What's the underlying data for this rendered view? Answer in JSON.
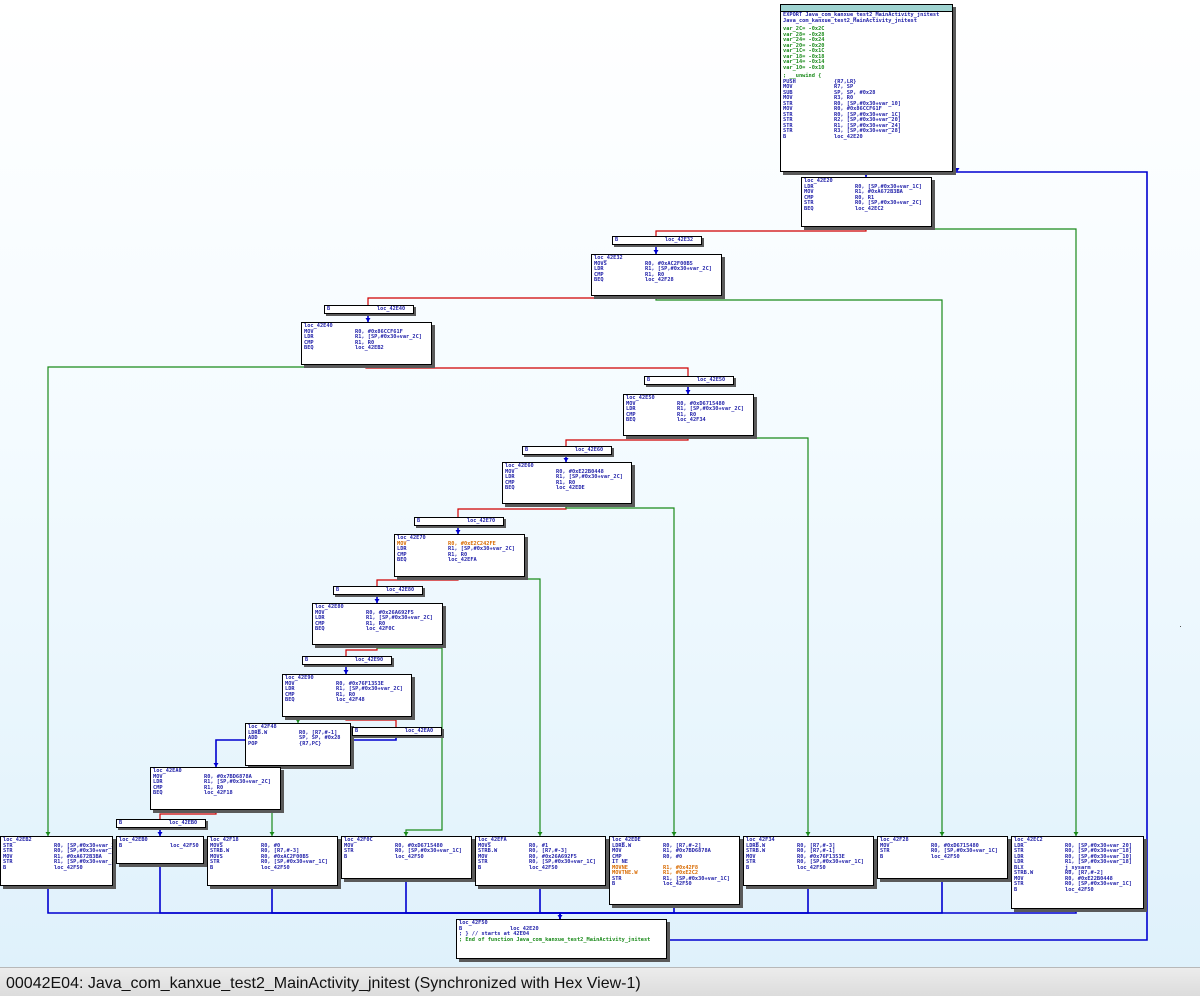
{
  "status_bar": {
    "text": "00042E04: Java_com_kanxue_test2_MainActivity_jnitest  (Synchronized with Hex View-1)"
  },
  "colors": {
    "edge_true": "#1a8a1a",
    "edge_false": "#d00000",
    "edge_uncond": "#0000d0",
    "node_header": "#9fd3d0"
  },
  "graph": {
    "entry": {
      "lines": [
        "EXPORT Java_com_kanxue_test2_MainActivity_jnitest",
        "Java_com_kanxue_test2_MainActivity_jnitest",
        "",
        "var_2C= -0x2C",
        "var_28= -0x28",
        "var_24= -0x24",
        "var_20= -0x20",
        "var_1C= -0x1C",
        "var_18= -0x18",
        "var_14= -0x14",
        "var_10= -0x10",
        "",
        "; __unwind {",
        "PUSH            {R7,LR}",
        "MOV             R7, SP",
        "SUB             SP, SP, #0x28",
        "MOV             R3, R0",
        "STR             R0, [SP,#0x30+var_10]",
        "MOV             R0, #0x86CCF61F",
        "STR             R0, [SP,#0x30+var_1C]",
        "STR             R2, [SP,#0x30+var_20]",
        "STR             R1, [SP,#0x30+var_24]",
        "STR             R3, [SP,#0x30+var_28]",
        "B               loc_42E20"
      ]
    },
    "blocks": [
      {
        "id": "loc_42E20",
        "lines": [
          "loc_42E20",
          "LDR             R0, [SP,#0x30+var_1C]",
          "MOV             R1, #0xA672B3BA",
          "CMP             R0, R1",
          "STR             R0, [SP,#0x30+var_2C]",
          "BEQ             loc_42EC2"
        ]
      },
      {
        "id": "loc_42E32",
        "lines": [
          "loc_42E32",
          "MOVS            R0, #0xAC2F00B5",
          "LDR             R1, [SP,#0x30+var_2C]",
          "CMP             R1, R0",
          "BEQ             loc_42F28"
        ]
      },
      {
        "id": "loc_42E40",
        "lines": [
          "loc_42E40",
          "MOV             R0, #0x86CCF61F",
          "LDR             R1, [SP,#0x30+var_2C]",
          "CMP             R1, R0",
          "BEQ             loc_42EB2"
        ]
      },
      {
        "id": "loc_42E50",
        "lines": [
          "loc_42E50",
          "MOV             R0, #0xD6715480",
          "LDR             R1, [SP,#0x30+var_2C]",
          "CMP             R1, R0",
          "BEQ             loc_42F34"
        ]
      },
      {
        "id": "loc_42E60",
        "lines": [
          "loc_42E60",
          "MOV             R0, #0xE22B0448",
          "LDR             R1, [SP,#0x30+var_2C]",
          "CMP             R1, R0",
          "BEQ             loc_42EDE"
        ]
      },
      {
        "id": "loc_42E70",
        "lines": [
          "loc_42E70",
          "MOV             R0, #0xE2C242FE",
          "LDR             R1, [SP,#0x30+var_2C]",
          "CMP             R1, R0",
          "BEQ             loc_42EFA"
        ]
      },
      {
        "id": "loc_42E80",
        "lines": [
          "loc_42E80",
          "MOV             R0, #0x26A692F5",
          "LDR             R1, [SP,#0x30+var_2C]",
          "CMP             R1, R0",
          "BEQ             loc_42F0C"
        ]
      },
      {
        "id": "loc_42E90",
        "lines": [
          "loc_42E90",
          "MOV             R0, #0x76F1353E",
          "LDR             R1, [SP,#0x30+var_2C]",
          "CMP             R1, R0",
          "BEQ             loc_42F48"
        ]
      },
      {
        "id": "loc_42F48",
        "lines": [
          "loc_42F48",
          "LDRB.W          R0, [R7,#-1]",
          "ADD             SP, SP, #0x28",
          "POP             {R7,PC}"
        ]
      },
      {
        "id": "loc_42EA0",
        "lines": [
          "loc_42EA0",
          "MOV             R0, #0x7BD6878A",
          "LDR             R1, [SP,#0x30+var_2C]",
          "CMP             R1, R0",
          "BEQ             loc_42F18"
        ]
      },
      {
        "id": "loc_42EB2",
        "lines": [
          "loc_42EB2",
          "STR             R0, [SP,#0x30+var_24]",
          "STR             R0, [SP,#0x30+var_14]",
          "MOV             R1, #0xA672B3BA",
          "STR             R1, [SP,#0x30+var_1C]",
          "B               loc_42F50"
        ]
      },
      {
        "id": "loc_42EB0",
        "lines": [
          "loc_42EB0",
          "B               loc_42F50"
        ]
      },
      {
        "id": "loc_42F18",
        "lines": [
          "loc_42F18",
          "MOVS            R0, #0",
          "STRB.W          R0, [R7,#-3]",
          "MOVS            R0, #0xAC2F00B5",
          "STR             R0, [SP,#0x30+var_1C]",
          "B               loc_42F50"
        ]
      },
      {
        "id": "loc_42F0C",
        "lines": [
          "loc_42F0C",
          "MOV             R0, #0xD6715480",
          "STR             R0, [SP,#0x30+var_1C]",
          "B               loc_42F50"
        ]
      },
      {
        "id": "loc_42EFA",
        "lines": [
          "loc_42EFA",
          "MOVS            R0, #1",
          "STRB.W          R0, [R7,#-3]",
          "MOV             R0, #0x26A692F5",
          "STR             R0, [SP,#0x30+var_1C]",
          "B               loc_42F50"
        ]
      },
      {
        "id": "loc_42EDE",
        "lines": [
          "loc_42EDE",
          "LDRB.W          R0, [R7,#-2]",
          "MOV             R1, #0x7BD6878A",
          "CMP             R0, #0",
          "IT NE",
          "MOVNE           R1, #0x42F8",
          "MOVTNE.W        R1, #0xE2C2",
          "STR             R1, [SP,#0x30+var_1C]",
          "B               loc_42F50"
        ]
      },
      {
        "id": "loc_42F34",
        "lines": [
          "loc_42F34",
          "LDRB.W          R0, [R7,#-3]",
          "STRB.W          R0, [R7,#-1]",
          "MOV             R0, #0x76F1353E",
          "STR             R0, [SP,#0x30+var_1C]",
          "B               loc_42F50"
        ]
      },
      {
        "id": "loc_42F28",
        "lines": [
          "loc_42F28",
          "MOV             R0, #0xD6715480",
          "STR             R0, [SP,#0x30+var_1C]",
          "B               loc_42F50"
        ]
      },
      {
        "id": "loc_42EC2",
        "lines": [
          "loc_42EC2",
          "LDR             R0, [SP,#0x30+var_20]",
          "STR             R0, [SP,#0x30+var_18]",
          "LDR             R0, [SP,#0x30+var_10]",
          "LDR             R1, [SP,#0x30+var_18]",
          "BLX             j_sysarm",
          "STRB.W          R0, [R7,#-2]",
          "MOV             R0, #0xE22B0448",
          "STR             R0, [SP,#0x30+var_1C]",
          "B               loc_42F50"
        ]
      },
      {
        "id": "loc_42F50",
        "lines": [
          "loc_42F50",
          "B               loc_42E20",
          "; } // starts at 42E04",
          "; End of function Java_com_kanxue_test2_MainActivity_jnitest"
        ]
      }
    ],
    "stubs": [
      {
        "id": "stub_42E32",
        "text": "B               loc_42E32"
      },
      {
        "id": "stub_42E40",
        "text": "B               loc_42E40"
      },
      {
        "id": "stub_42E50",
        "text": "B               loc_42E50"
      },
      {
        "id": "stub_42E60",
        "text": "B               loc_42E60"
      },
      {
        "id": "stub_42E70",
        "text": "B               loc_42E70"
      },
      {
        "id": "stub_42E80",
        "text": "B               loc_42E80"
      },
      {
        "id": "stub_42E90",
        "text": "B               loc_42E90"
      },
      {
        "id": "stub_42EA0",
        "text": "B               loc_42EA0"
      },
      {
        "id": "stub_42EB0",
        "text": "B               loc_42EB0"
      }
    ]
  }
}
